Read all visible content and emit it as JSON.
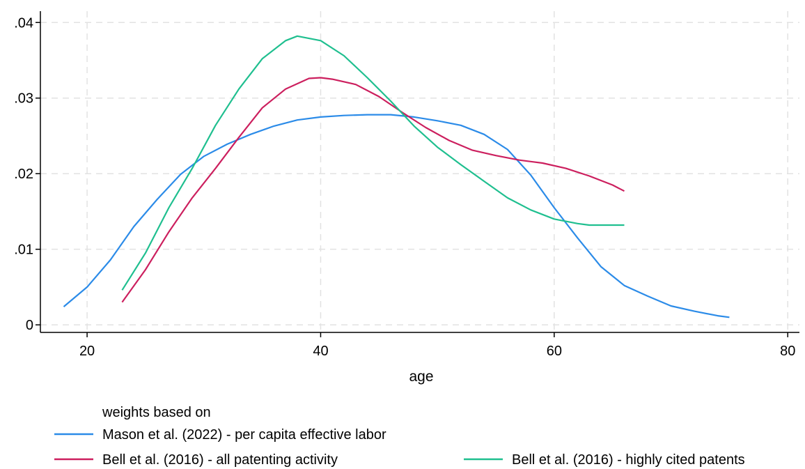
{
  "chart_data": {
    "type": "line",
    "xlabel": "age",
    "ylabel": "",
    "xlim": [
      16,
      81
    ],
    "ylim": [
      -0.001,
      0.0415
    ],
    "xticks": [
      20,
      40,
      60,
      80
    ],
    "xtick_labels": [
      "20",
      "40",
      "60",
      "80"
    ],
    "yticks": [
      0,
      0.01,
      0.02,
      0.03,
      0.04
    ],
    "ytick_labels": [
      "0",
      ".01",
      ".02",
      ".03",
      ".04"
    ],
    "grid": true,
    "legend_title": "weights based on",
    "legend_position": "bottom",
    "series": [
      {
        "name": "Mason et al. (2022) - per capita effective labor",
        "color": "#2b8be8",
        "points": [
          [
            18,
            0.0024
          ],
          [
            20,
            0.005
          ],
          [
            22,
            0.0086
          ],
          [
            24,
            0.013
          ],
          [
            26,
            0.0166
          ],
          [
            28,
            0.0199
          ],
          [
            30,
            0.0223
          ],
          [
            32,
            0.0239
          ],
          [
            34,
            0.0252
          ],
          [
            36,
            0.0263
          ],
          [
            38,
            0.0271
          ],
          [
            40,
            0.0275
          ],
          [
            42,
            0.0277
          ],
          [
            44,
            0.0278
          ],
          [
            46,
            0.0278
          ],
          [
            48,
            0.0275
          ],
          [
            50,
            0.027
          ],
          [
            52,
            0.0264
          ],
          [
            54,
            0.0252
          ],
          [
            56,
            0.0232
          ],
          [
            58,
            0.0198
          ],
          [
            60,
            0.0155
          ],
          [
            62,
            0.0115
          ],
          [
            64,
            0.0077
          ],
          [
            66,
            0.0052
          ],
          [
            68,
            0.0038
          ],
          [
            70,
            0.0025
          ],
          [
            72,
            0.0018
          ],
          [
            74,
            0.0012
          ],
          [
            75,
            0.001
          ]
        ]
      },
      {
        "name": "Bell et al. (2016) - all patenting activity",
        "color": "#cc1f5e",
        "points": [
          [
            23,
            0.003
          ],
          [
            25,
            0.0073
          ],
          [
            27,
            0.0123
          ],
          [
            29,
            0.0168
          ],
          [
            31,
            0.0207
          ],
          [
            33,
            0.0248
          ],
          [
            35,
            0.0287
          ],
          [
            37,
            0.0312
          ],
          [
            39,
            0.0326
          ],
          [
            40,
            0.0327
          ],
          [
            41,
            0.0325
          ],
          [
            43,
            0.0318
          ],
          [
            45,
            0.0302
          ],
          [
            47,
            0.0281
          ],
          [
            49,
            0.0261
          ],
          [
            51,
            0.0244
          ],
          [
            53,
            0.0231
          ],
          [
            55,
            0.0224
          ],
          [
            57,
            0.0218
          ],
          [
            59,
            0.0214
          ],
          [
            61,
            0.0207
          ],
          [
            63,
            0.0197
          ],
          [
            65,
            0.0185
          ],
          [
            66,
            0.0177
          ]
        ]
      },
      {
        "name": "Bell et al. (2016) - highly cited patents",
        "color": "#1fbf8f",
        "points": [
          [
            23,
            0.0046
          ],
          [
            25,
            0.0095
          ],
          [
            27,
            0.0155
          ],
          [
            29,
            0.0207
          ],
          [
            31,
            0.0264
          ],
          [
            33,
            0.0312
          ],
          [
            35,
            0.0352
          ],
          [
            37,
            0.0376
          ],
          [
            38,
            0.0382
          ],
          [
            40,
            0.0376
          ],
          [
            42,
            0.0356
          ],
          [
            44,
            0.0327
          ],
          [
            46,
            0.0296
          ],
          [
            48,
            0.0263
          ],
          [
            50,
            0.0235
          ],
          [
            52,
            0.0212
          ],
          [
            54,
            0.019
          ],
          [
            56,
            0.0168
          ],
          [
            58,
            0.0152
          ],
          [
            60,
            0.014
          ],
          [
            62,
            0.0134
          ],
          [
            63,
            0.0132
          ],
          [
            66,
            0.0132
          ]
        ]
      }
    ]
  },
  "colors": {
    "axis": "#000000",
    "grid": "#e2e2e2",
    "background": "#ffffff"
  }
}
